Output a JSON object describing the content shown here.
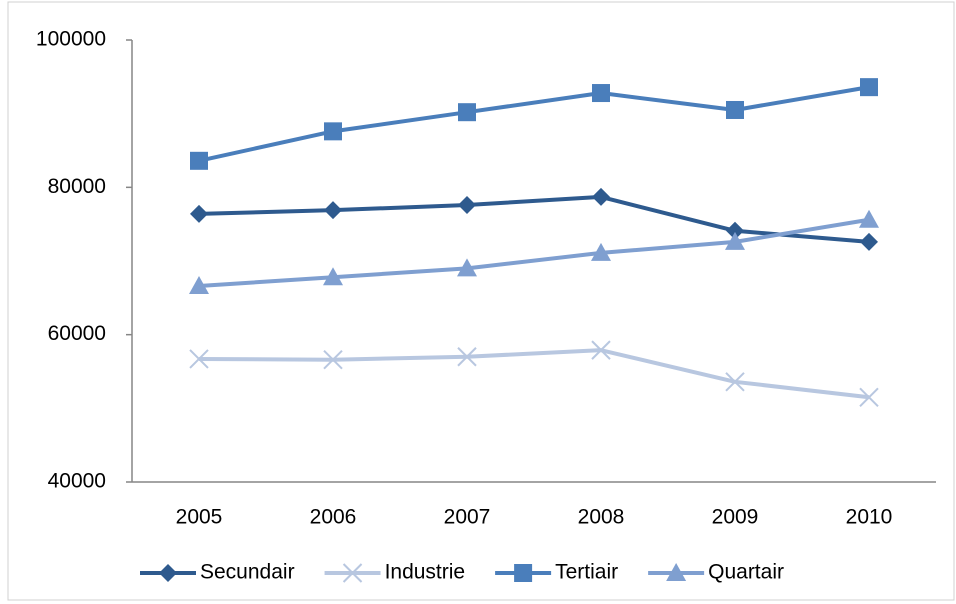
{
  "chart_data": {
    "type": "line",
    "categories": [
      "2005",
      "2006",
      "2007",
      "2008",
      "2009",
      "2010"
    ],
    "series": [
      {
        "name": "Secundair",
        "color": "#2e5a8e",
        "marker": "diamond",
        "values": [
          76400,
          76900,
          77600,
          78700,
          74100,
          72600
        ]
      },
      {
        "name": "Industrie",
        "color": "#b8c7e0",
        "marker": "x",
        "values": [
          56700,
          56600,
          57000,
          57900,
          53600,
          51500
        ]
      },
      {
        "name": "Tertiair",
        "color": "#4a7ebb",
        "marker": "square",
        "values": [
          83600,
          87600,
          90200,
          92800,
          90500,
          93600
        ]
      },
      {
        "name": "Quartair",
        "color": "#7f9fd0",
        "marker": "triangle",
        "values": [
          66600,
          67800,
          69000,
          71100,
          72600,
          75600
        ]
      }
    ],
    "ylim": [
      40000,
      100000
    ],
    "yticks": [
      40000,
      60000,
      80000,
      100000
    ],
    "grid": false,
    "legend": "bottom"
  }
}
